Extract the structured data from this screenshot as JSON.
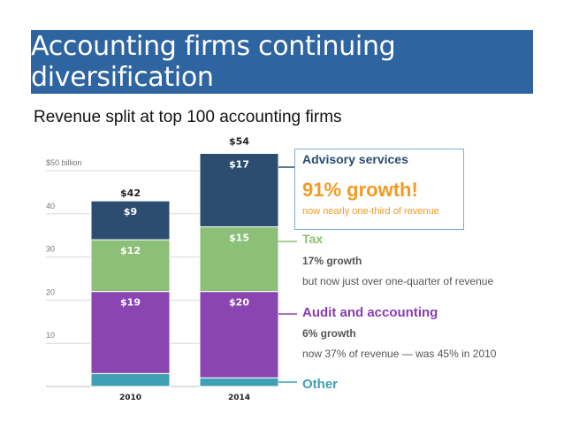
{
  "title": "Accounting firms continuing diversification",
  "subtitle": "Revenue split at top 100 accounting firms",
  "callouts": {
    "advisory": {
      "title": "Advisory services",
      "growth": "91% growth!",
      "note": "now nearly one-third of revenue"
    },
    "tax": {
      "title": "Tax",
      "growth": "17% growth",
      "note": "but now just over one-quarter of revenue"
    },
    "audit": {
      "title": "Audit and accounting",
      "growth": "6% growth",
      "note": "now 37% of revenue — was 45% in 2010"
    },
    "other": {
      "title": "Other"
    }
  },
  "colors": {
    "banner": "#2e64a0",
    "advisory": "#2c4d70",
    "tax": "#8cbf78",
    "audit": "#8a45b3",
    "other": "#3f9fb5",
    "advisory_text": "#2a4b74",
    "growth_highlight": "#f39a21",
    "gridline": "#d9d9d9"
  },
  "chart_data": {
    "type": "bar",
    "stacked": true,
    "categories": [
      "2010",
      "2014"
    ],
    "series": [
      {
        "name": "Other",
        "values": [
          3,
          2
        ],
        "labels": [
          "",
          ""
        ]
      },
      {
        "name": "Audit and accounting",
        "values": [
          19,
          20
        ],
        "labels": [
          "$19",
          "$20"
        ]
      },
      {
        "name": "Tax",
        "values": [
          12,
          15
        ],
        "labels": [
          "$12",
          "$15"
        ]
      },
      {
        "name": "Advisory services",
        "values": [
          9,
          17
        ],
        "labels": [
          "$9",
          "$17"
        ]
      }
    ],
    "totals": [
      42,
      54
    ],
    "total_labels": [
      "$42",
      "$54"
    ],
    "yticks": [
      10,
      20,
      30,
      40,
      50
    ],
    "ytick_labels": [
      "10",
      "20",
      "30",
      "40",
      "$50 billion"
    ],
    "ylim": [
      0,
      54
    ],
    "grid": true,
    "legend": "right (callouts)"
  }
}
